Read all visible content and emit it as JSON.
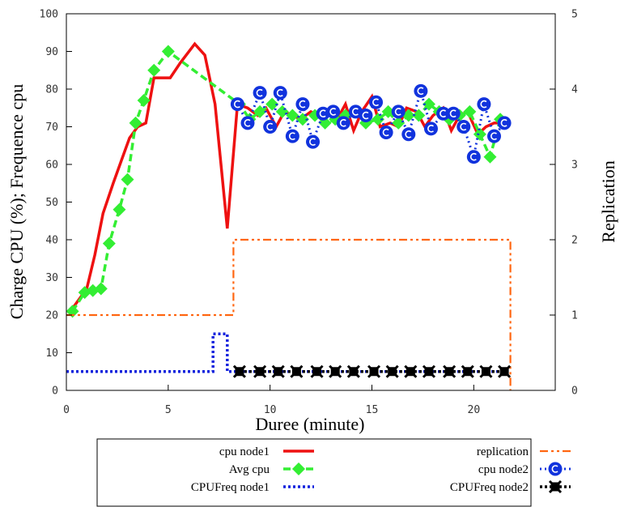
{
  "chart_data": {
    "type": "line",
    "xlabel": "Duree (minute)",
    "ylabel": "Charge CPU (%); Frequence cpu",
    "y2label": "Replication",
    "xlim": [
      0,
      24
    ],
    "ylim": [
      0,
      100
    ],
    "y2lim": [
      0,
      5
    ],
    "x_ticks": [
      "0",
      "5",
      "10",
      "15",
      "20"
    ],
    "x_tick_values": [
      0,
      5,
      10,
      15,
      20
    ],
    "y_ticks": [
      "0",
      "10",
      "20",
      "30",
      "40",
      "50",
      "60",
      "70",
      "80",
      "90",
      "100"
    ],
    "y_tick_values": [
      0,
      10,
      20,
      30,
      40,
      50,
      60,
      70,
      80,
      90,
      100
    ],
    "y2_ticks": [
      "0",
      "1",
      "2",
      "3",
      "4",
      "5"
    ],
    "y2_tick_values": [
      0,
      1,
      2,
      3,
      4,
      5
    ],
    "grid": false,
    "legend_position": "bottom",
    "series": [
      {
        "name": "cpu node1",
        "style": "solid-line",
        "color": "#ee1111",
        "axis": "left",
        "x": [
          0.2,
          0.6,
          1.0,
          1.4,
          1.8,
          2.3,
          2.7,
          3.1,
          3.5,
          3.9,
          4.3,
          4.7,
          5.1,
          5.6,
          6.3,
          6.8,
          7.3,
          7.9,
          8.4,
          8.9,
          9.4,
          9.8,
          10.3,
          10.7,
          11.1,
          11.5,
          12.0,
          12.4,
          12.8,
          13.3,
          13.7,
          14.1,
          14.5,
          15.0,
          15.4,
          15.9,
          16.3,
          16.7,
          17.2,
          17.6,
          18.0,
          18.5,
          18.9,
          19.3,
          19.7,
          20.2,
          20.6,
          21.0,
          21.4
        ],
        "y": [
          21,
          24,
          27,
          36,
          47,
          55,
          61,
          67,
          70,
          71,
          83,
          83,
          83,
          87,
          92,
          89,
          76,
          43,
          76,
          75,
          73,
          75,
          70,
          74,
          73,
          72,
          74,
          73,
          74,
          72,
          76,
          69,
          74,
          78,
          70,
          71,
          70,
          75,
          74,
          70,
          73,
          75,
          69,
          73,
          74,
          68,
          70,
          71,
          71
        ]
      },
      {
        "name": "Avg cpu",
        "style": "dashed-line-diamond",
        "color": "#33ee33",
        "axis": "left",
        "x": [
          0.3,
          0.9,
          1.3,
          1.7,
          2.1,
          2.6,
          3.0,
          3.4,
          3.8,
          4.3,
          5.0,
          8.5,
          9.0,
          9.5,
          10.1,
          10.6,
          11.1,
          11.6,
          12.2,
          12.7,
          13.2,
          13.7,
          14.2,
          14.7,
          15.3,
          15.8,
          16.3,
          16.8,
          17.3,
          17.8,
          18.3,
          18.8,
          19.3,
          19.8,
          20.3,
          20.8,
          21.3
        ],
        "y": [
          21,
          26,
          26.5,
          27,
          39,
          48,
          56,
          71,
          77,
          85,
          90,
          76,
          72,
          74,
          76,
          74,
          73,
          72,
          73,
          71,
          72,
          73,
          74,
          71,
          72,
          74,
          71,
          73,
          73,
          76,
          74,
          72,
          73,
          74,
          68,
          62,
          72
        ]
      },
      {
        "name": "cpu node2",
        "style": "dotted-line-circle",
        "color": "#1133dd",
        "axis": "left",
        "x": [
          8.4,
          8.9,
          9.5,
          10.0,
          10.5,
          11.1,
          11.6,
          12.1,
          12.6,
          13.1,
          13.6,
          14.2,
          14.7,
          15.2,
          15.7,
          16.3,
          16.8,
          17.4,
          17.9,
          18.5,
          19.0,
          19.5,
          20.0,
          20.5,
          21.0,
          21.5
        ],
        "y": [
          76,
          71,
          79,
          70,
          79,
          67.5,
          76,
          66,
          73.5,
          74,
          71,
          74,
          73,
          76.5,
          68.5,
          74,
          68,
          79.5,
          69.5,
          73.5,
          73.5,
          70,
          62,
          76,
          67.5,
          71
        ]
      },
      {
        "name": "replication",
        "style": "dash-dot-dot-line",
        "color": "#ff6611",
        "axis": "right",
        "x": [
          0,
          8.2,
          8.2,
          21.8,
          21.8
        ],
        "y": [
          1,
          1,
          2,
          2,
          0
        ]
      },
      {
        "name": "CPUFreq node1",
        "style": "dotted-line",
        "color": "#1122dd",
        "axis": "left",
        "x": [
          0,
          7.2,
          7.2,
          7.9,
          7.9,
          21.8
        ],
        "y": [
          5,
          5,
          15,
          15,
          5,
          5
        ]
      },
      {
        "name": "CPUFreq node2",
        "style": "dotted-line-star",
        "color": "#000000",
        "axis": "left",
        "x": [
          8.5,
          9.5,
          10.4,
          11.3,
          12.3,
          13.2,
          14.1,
          15.1,
          16.0,
          16.9,
          17.8,
          18.8,
          19.7,
          20.6,
          21.5
        ],
        "y": [
          5,
          5,
          5,
          5,
          5,
          5,
          5,
          5,
          5,
          5,
          5,
          5,
          5,
          5,
          5
        ]
      }
    ]
  },
  "legend": {
    "items": [
      {
        "label": "cpu node1"
      },
      {
        "label": "replication"
      },
      {
        "label": "Avg cpu"
      },
      {
        "label": "cpu node2"
      },
      {
        "label": "CPUFreq node1"
      },
      {
        "label": "CPUFreq node2"
      }
    ]
  }
}
